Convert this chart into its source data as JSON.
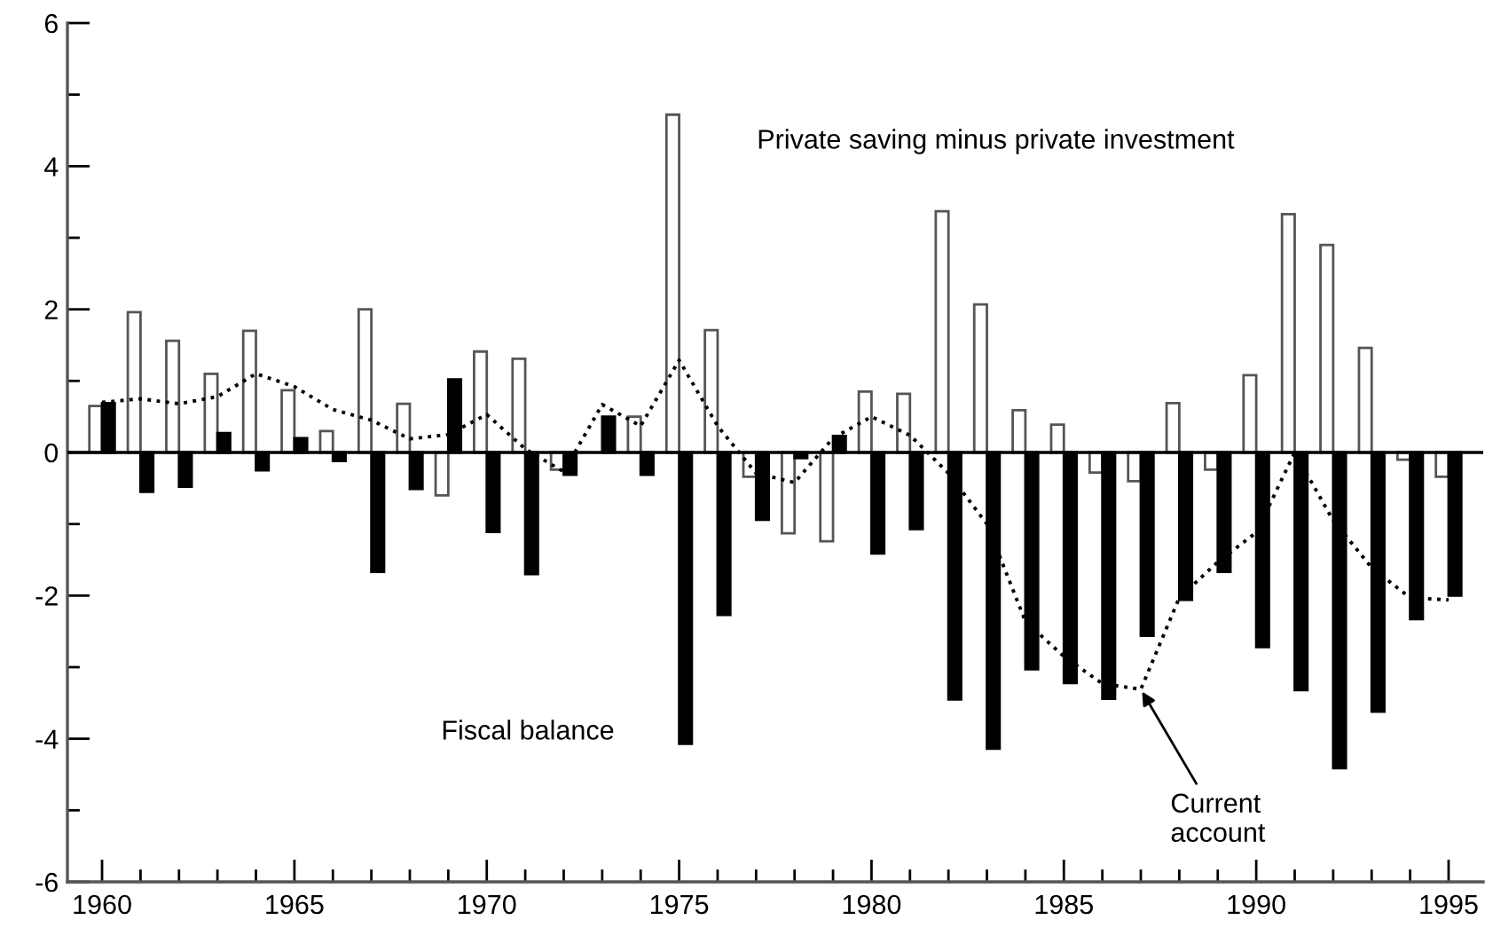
{
  "chart_data": {
    "type": "bar",
    "x": [
      1960,
      1961,
      1962,
      1963,
      1964,
      1965,
      1966,
      1967,
      1968,
      1969,
      1970,
      1971,
      1972,
      1973,
      1974,
      1975,
      1976,
      1977,
      1978,
      1979,
      1980,
      1981,
      1982,
      1983,
      1984,
      1985,
      1986,
      1987,
      1988,
      1989,
      1990,
      1991,
      1992,
      1993,
      1994,
      1995
    ],
    "series": [
      {
        "color": "#ffffff",
        "values": [
          0.65,
          1.96,
          1.56,
          1.1,
          1.7,
          0.87,
          0.3,
          2.0,
          0.68,
          -0.6,
          1.41,
          1.31,
          -0.24,
          null,
          0.5,
          4.72,
          1.71,
          -0.34,
          -1.13,
          -1.24,
          0.85,
          0.82,
          3.37,
          2.07,
          0.59,
          0.39,
          -0.28,
          -0.4,
          0.69,
          -0.24,
          1.08,
          3.33,
          2.9,
          1.46,
          -0.1,
          -0.34
        ]
      },
      {
        "color": "#000000",
        "values": [
          0.69,
          -0.55,
          -0.48,
          0.27,
          -0.25,
          0.2,
          -0.12,
          -1.67,
          -0.51,
          1.02,
          -1.11,
          -1.7,
          -0.31,
          0.5,
          -0.31,
          -4.07,
          -2.27,
          -0.94,
          -0.08,
          0.23,
          -1.41,
          -1.07,
          -3.45,
          -4.14,
          -3.03,
          -3.22,
          -3.44,
          -2.56,
          -2.06,
          -1.67,
          -2.72,
          -3.32,
          -4.41,
          -3.62,
          -2.33,
          -2.0
        ]
      },
      {
        "type": "line",
        "color": "#000000",
        "line_style": "dotted",
        "values": [
          0.7,
          0.75,
          0.68,
          0.78,
          1.1,
          0.92,
          0.6,
          0.45,
          0.19,
          0.25,
          0.53,
          0.05,
          -0.27,
          0.67,
          0.37,
          1.29,
          0.37,
          -0.29,
          -0.42,
          0.2,
          0.5,
          0.24,
          -0.29,
          -1.0,
          -2.36,
          -2.85,
          -3.23,
          -3.31,
          -2.03,
          -1.53,
          -1.12,
          0.0,
          -0.95,
          -1.61,
          -2.03,
          -2.06
        ]
      }
    ],
    "annotations": [
      "Private saving minus private investment",
      "Fiscal balance",
      {
        "text": "Current\naccount",
        "x": 1987,
        "y": -3.31
      }
    ],
    "ref_lines": [
      {
        "axis": "y",
        "value": 0,
        "color": "#000000"
      }
    ],
    "xlim": [
      1959.1,
      1995.9
    ],
    "xticks": [
      1960,
      {
        "value": 1961,
        "label": null
      },
      {
        "value": 1962,
        "label": null
      },
      {
        "value": 1963,
        "label": null
      },
      {
        "value": 1964,
        "label": null
      },
      1965,
      {
        "value": 1966,
        "label": null
      },
      {
        "value": 1967,
        "label": null
      },
      {
        "value": 1968,
        "label": null
      },
      {
        "value": 1969,
        "label": null
      },
      1970,
      {
        "value": 1971,
        "label": null
      },
      {
        "value": 1972,
        "label": null
      },
      {
        "value": 1973,
        "label": null
      },
      {
        "value": 1974,
        "label": null
      },
      1975,
      {
        "value": 1976,
        "label": null
      },
      {
        "value": 1977,
        "label": null
      },
      {
        "value": 1978,
        "label": null
      },
      {
        "value": 1979,
        "label": null
      },
      1980,
      {
        "value": 1981,
        "label": null
      },
      {
        "value": 1982,
        "label": null
      },
      {
        "value": 1983,
        "label": null
      },
      {
        "value": 1984,
        "label": null
      },
      1985,
      {
        "value": 1986,
        "label": null
      },
      {
        "value": 1987,
        "label": null
      },
      {
        "value": 1988,
        "label": null
      },
      {
        "value": 1989,
        "label": null
      },
      1990,
      {
        "value": 1991,
        "label": null
      },
      {
        "value": 1992,
        "label": null
      },
      {
        "value": 1993,
        "label": null
      },
      {
        "value": 1994,
        "label": null
      },
      1995
    ],
    "ylim": [
      -6,
      6
    ],
    "yticks": [
      -6,
      {
        "value": -5,
        "label": null
      },
      -4,
      {
        "value": -3,
        "label": null
      },
      -2,
      {
        "value": -1,
        "label": null
      },
      0,
      {
        "value": 1,
        "label": null
      },
      2,
      {
        "value": 3,
        "label": null
      },
      4,
      {
        "value": 5,
        "label": null
      },
      6
    ],
    "grid": false,
    "legend": false,
    "marker": "none"
  }
}
